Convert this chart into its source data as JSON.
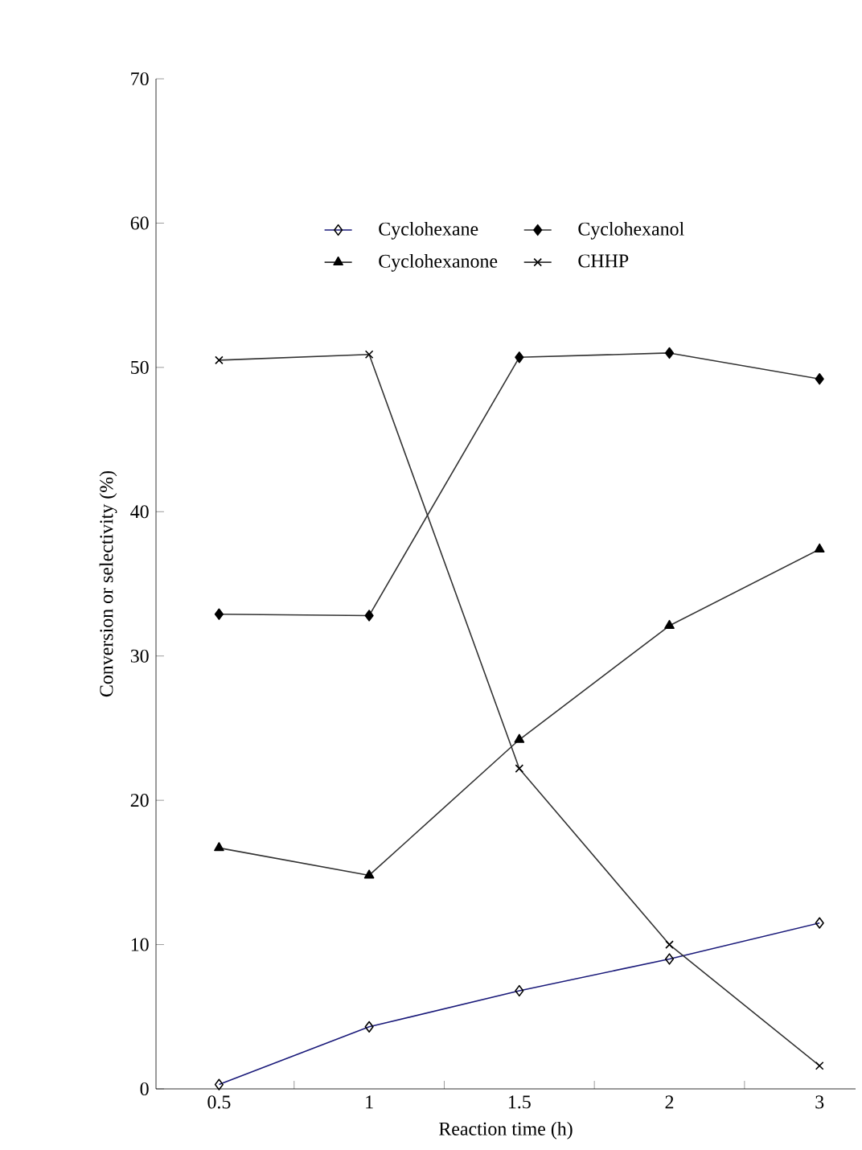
{
  "chart_data": {
    "type": "line",
    "xlabel": "Reaction time (h)",
    "ylabel": "Conversion or selectivity (%)",
    "categories": [
      "0.5",
      "1",
      "1.5",
      "2",
      "3"
    ],
    "ylim": [
      0,
      70
    ],
    "yticks": [
      0,
      10,
      20,
      30,
      40,
      50,
      60,
      70
    ],
    "legend": "top",
    "grid": false,
    "series": [
      {
        "name": "Cyclohexane",
        "color": "#1a1a7a",
        "marker": "diamond",
        "values": [
          0.3,
          4.3,
          6.8,
          9.0,
          11.5
        ]
      },
      {
        "name": "Cyclohexanol",
        "color": "#333333",
        "marker": "diamond",
        "values": [
          32.9,
          32.8,
          50.7,
          51.0,
          49.2
        ]
      },
      {
        "name": "Cyclohexanone",
        "color": "#333333",
        "marker": "triangle",
        "values": [
          16.7,
          14.8,
          24.2,
          32.1,
          37.4
        ]
      },
      {
        "name": "CHHP",
        "color": "#333333",
        "marker": "cross",
        "values": [
          50.5,
          50.9,
          22.2,
          10.0,
          1.6
        ]
      }
    ]
  }
}
